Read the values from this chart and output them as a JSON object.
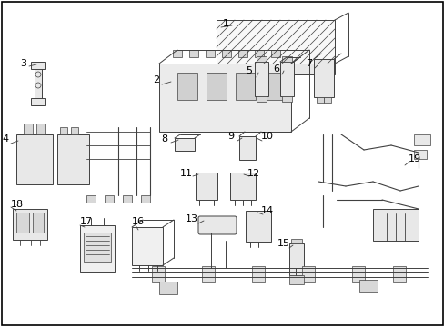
{
  "background_color": "#ffffff",
  "border_color": "#000000",
  "line_color": "#404040",
  "label_color": "#000000",
  "fig_width": 4.89,
  "fig_height": 3.6,
  "dpi": 100
}
